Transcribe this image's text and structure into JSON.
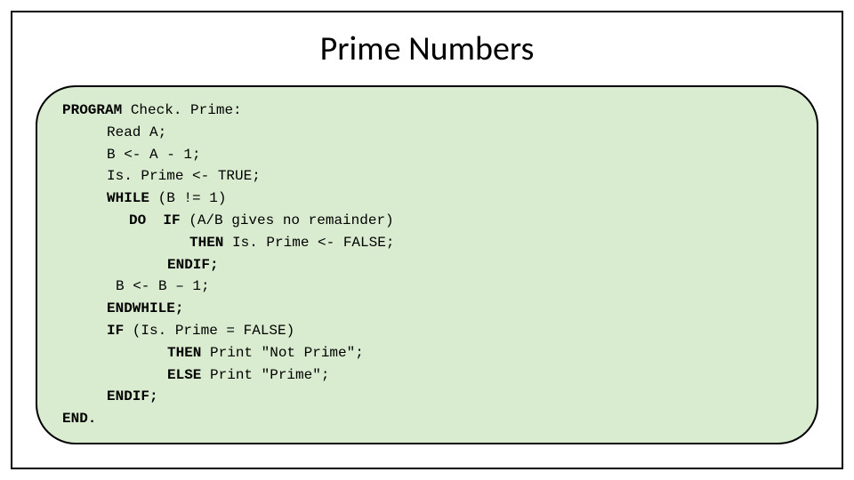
{
  "slide": {
    "title": "Prime Numbers",
    "title_fontsize": 38,
    "title_color": "#000000",
    "frame_border_color": "#000000",
    "frame_border_width": 2,
    "code_box": {
      "background_color": "#d9ecd0",
      "border_color": "#000000",
      "border_width": 2,
      "border_radius": 45,
      "font_family": "Courier New",
      "font_size": 16,
      "text_color": "#000000"
    },
    "code": {
      "kw_program": "PROGRAM",
      "program_name": " Check. Prime:",
      "l_read": "Read A;",
      "l_assignB": "B <- A - 1;",
      "l_isprime": "Is. Prime <- TRUE;",
      "kw_while": "WHILE",
      "while_cond": " (B != 1)",
      "kw_do": "DO",
      "kw_if1": "IF",
      "if1_cond": " (A/B gives no remainder)",
      "kw_then1": "THEN",
      "then1_body": " Is. Prime <- FALSE;",
      "kw_endif1": "ENDIF;",
      "l_decB": "B <- B – 1;",
      "kw_endwhile": "ENDWHILE;",
      "kw_if2": "IF",
      "if2_cond": " (Is. Prime = FALSE)",
      "kw_then2": "THEN",
      "then2_body": " Print \"Not Prime\";",
      "kw_else": "ELSE",
      "else_body": " Print \"Prime\";",
      "kw_endif2": "ENDIF;",
      "kw_end": "END."
    }
  }
}
